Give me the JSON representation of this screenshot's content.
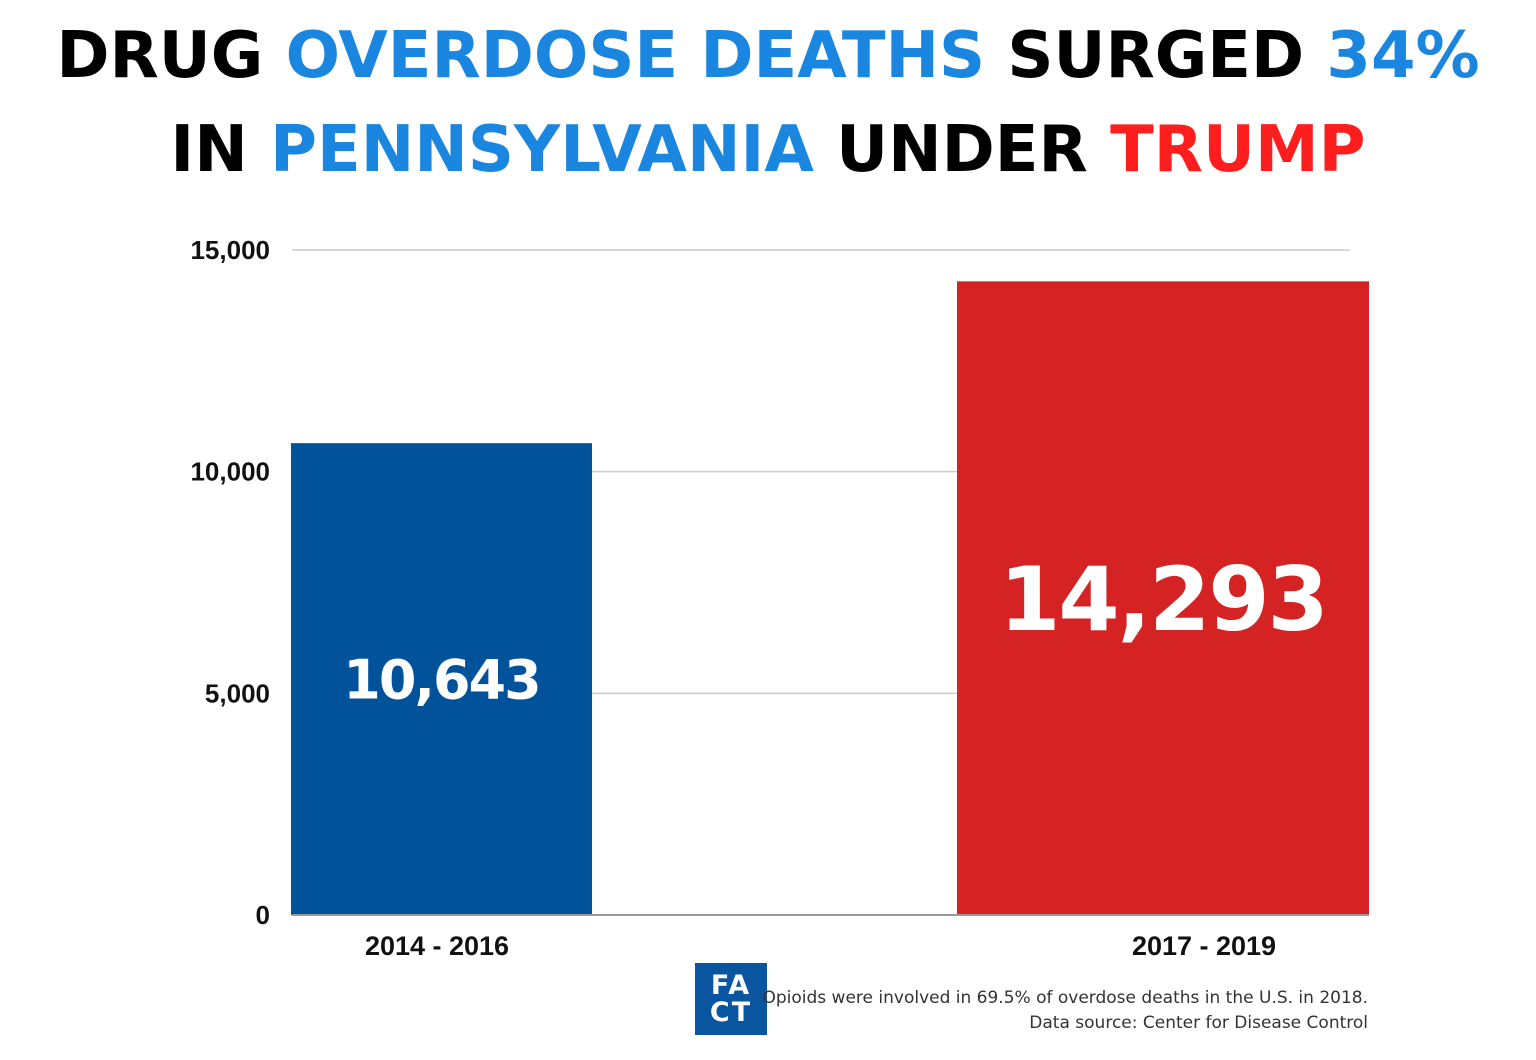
{
  "title": {
    "line1": [
      {
        "text": "DRUG ",
        "color": "#000000"
      },
      {
        "text": "OVERDOSE DEATHS",
        "color": "#1a86e0"
      },
      {
        "text": " SURGED ",
        "color": "#000000"
      },
      {
        "text": "34%",
        "color": "#1a86e0"
      }
    ],
    "line2": [
      {
        "text": "IN ",
        "color": "#000000"
      },
      {
        "text": "PENNSYLVANIA",
        "color": "#1a86e0"
      },
      {
        "text": " UNDER ",
        "color": "#000000"
      },
      {
        "text": "TRUMP",
        "color": "#ff1e1e"
      }
    ]
  },
  "chart_data": {
    "type": "bar",
    "categories": [
      "2014 - 2016",
      "2017 - 2019"
    ],
    "values": [
      10643,
      14293
    ],
    "data_labels": [
      "10,643",
      "14,293"
    ],
    "colors": [
      "#00529b",
      "#d52323"
    ],
    "ylim": [
      0,
      15000
    ],
    "yticks": [
      0,
      5000,
      10000,
      15000
    ],
    "ytick_labels": [
      "0",
      "5,000",
      "10,000",
      "15,000"
    ],
    "grid": true,
    "xlabel": "",
    "ylabel": ""
  },
  "footer": {
    "logo_text": [
      "FA",
      "CT"
    ],
    "note": "Opioids were involved in 69.5% of overdose deaths in the U.S. in 2018.",
    "source": "Data source: Center for Disease Control"
  }
}
